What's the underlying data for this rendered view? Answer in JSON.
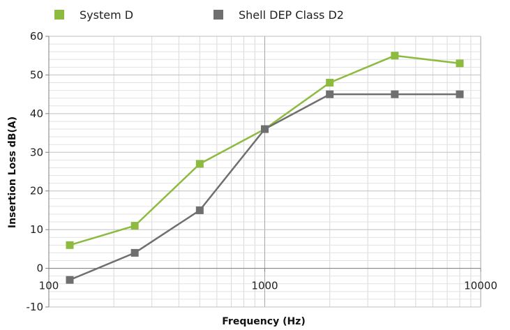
{
  "chart_data": {
    "type": "line",
    "xlabel": "Frequency (Hz)",
    "ylabel": "Insertion Loss dB(A)",
    "xscale": "log",
    "xlim": [
      100,
      10000
    ],
    "ylim": [
      -10,
      60
    ],
    "yticks": [
      -10,
      0,
      10,
      20,
      30,
      40,
      50,
      60
    ],
    "xticks": [
      100,
      1000,
      10000
    ],
    "grid": true,
    "legend_position": "top",
    "series": [
      {
        "name": "System D",
        "color": "#8dbb40",
        "x": [
          125,
          250,
          500,
          1000,
          2000,
          4000,
          8000
        ],
        "y": [
          6,
          11,
          27,
          36,
          48,
          55,
          53
        ]
      },
      {
        "name": "Shell DEP Class D2",
        "color": "#6f6f6f",
        "x": [
          125,
          250,
          500,
          1000,
          2000,
          4000,
          8000
        ],
        "y": [
          -3,
          4,
          15,
          36,
          45,
          45,
          45
        ]
      }
    ]
  }
}
